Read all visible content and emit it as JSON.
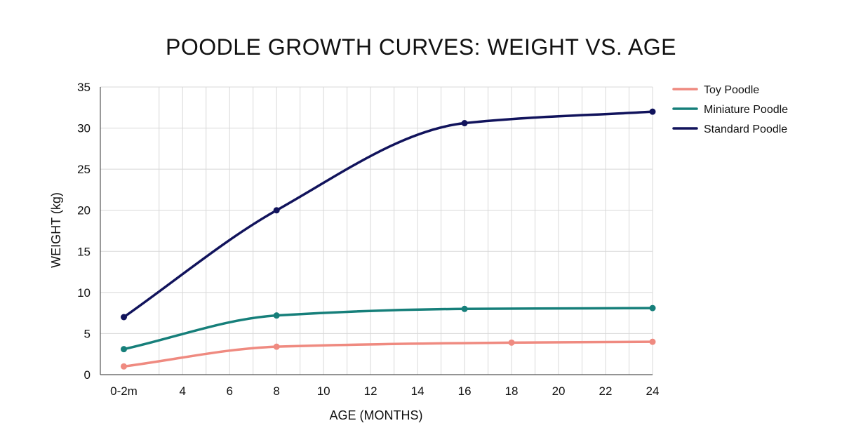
{
  "chart_data": {
    "type": "line",
    "title": "POODLE GROWTH CURVES: WEIGHT VS. AGE",
    "xlabel": "AGE (MONTHS)",
    "ylabel": "WEIGHT (kg)",
    "x_ticks": [
      {
        "value": 1.5,
        "label": "0-2m"
      },
      {
        "value": 4,
        "label": "4"
      },
      {
        "value": 6,
        "label": "6"
      },
      {
        "value": 8,
        "label": "8"
      },
      {
        "value": 10,
        "label": "10"
      },
      {
        "value": 12,
        "label": "12"
      },
      {
        "value": 14,
        "label": "14"
      },
      {
        "value": 16,
        "label": "16"
      },
      {
        "value": 18,
        "label": "18"
      },
      {
        "value": 20,
        "label": "20"
      },
      {
        "value": 22,
        "label": "22"
      },
      {
        "value": 24,
        "label": "24"
      }
    ],
    "y_ticks": [
      0,
      5,
      10,
      15,
      20,
      25,
      30,
      35
    ],
    "xlim": [
      0.5,
      24
    ],
    "ylim": [
      0,
      35
    ],
    "grid": true,
    "legend_position": "top-right",
    "series": [
      {
        "name": "Toy Poodle",
        "color": "#ef8a80",
        "x": [
          1.5,
          8,
          18,
          24
        ],
        "y": [
          1,
          3.4,
          3.9,
          4.0
        ]
      },
      {
        "name": "Miniature Poodle",
        "color": "#167f7a",
        "x": [
          1.5,
          8,
          16,
          24
        ],
        "y": [
          3.1,
          7.2,
          8.0,
          8.1
        ]
      },
      {
        "name": "Standard Poodle",
        "color": "#11135c",
        "x": [
          1.5,
          8,
          16,
          24
        ],
        "y": [
          7,
          20,
          30.6,
          32
        ]
      }
    ]
  }
}
